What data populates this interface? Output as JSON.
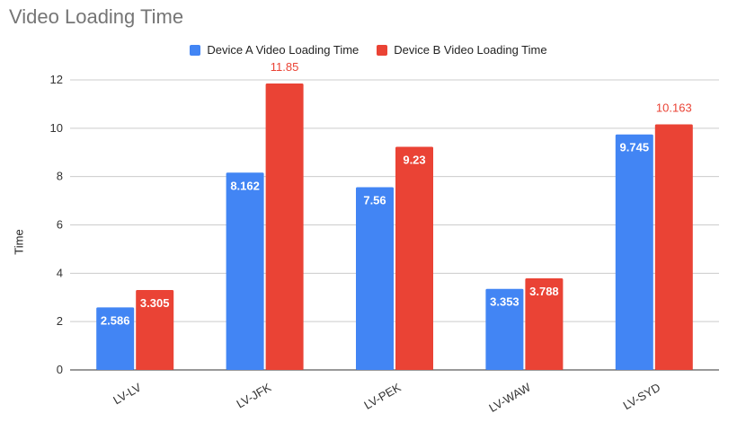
{
  "chart_data": {
    "type": "bar",
    "title": "Video Loading Time",
    "xlabel": "",
    "ylabel": "Time",
    "ylim": [
      0,
      12
    ],
    "yticks": [
      0,
      2,
      4,
      6,
      8,
      10,
      12
    ],
    "ytick_labels": [
      "0",
      "2",
      "4",
      "6",
      "8",
      "10",
      "12"
    ],
    "grid": true,
    "legend_position": "top",
    "categories": [
      "LV-LV",
      "LV-JFK",
      "LV-PEK",
      "LV-WAW",
      "LV-SYD"
    ],
    "series": [
      {
        "name": "Device A Video Loading Time",
        "color": "#4285f4",
        "values": [
          2.586,
          8.162,
          7.56,
          3.353,
          9.745
        ],
        "labels": [
          "2.586",
          "8.162",
          "7.56",
          "3.353",
          "9.745"
        ]
      },
      {
        "name": "Device B Video Loading Time",
        "color": "#ea4335",
        "values": [
          3.305,
          11.85,
          9.23,
          3.788,
          10.163
        ],
        "labels": [
          "3.305",
          "11.85",
          "9.23",
          "3.788",
          "10.163"
        ]
      }
    ]
  }
}
